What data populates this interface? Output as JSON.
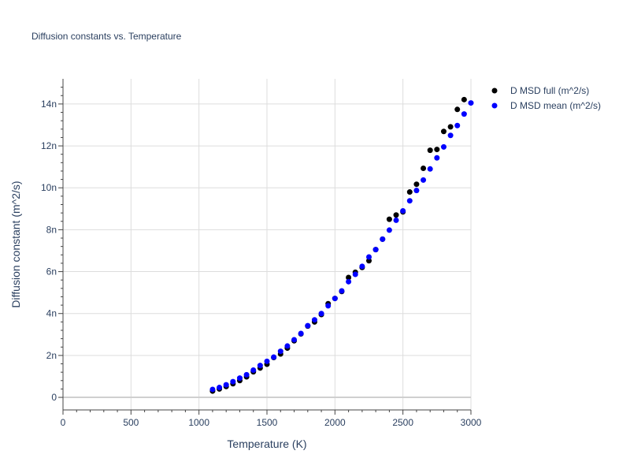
{
  "chart_data": {
    "type": "scatter",
    "title": "Diffusion constants vs. Temperature",
    "xlabel": "Temperature (K)",
    "ylabel": "Diffusion constant (m^2/s)",
    "xlim": [
      0,
      3000
    ],
    "ylim": [
      -0.6,
      15.2
    ],
    "x_ticks": [
      0,
      500,
      1000,
      1500,
      2000,
      2500,
      3000
    ],
    "x_tick_labels": [
      "0",
      "500",
      "1000",
      "1500",
      "2000",
      "2500",
      "3000"
    ],
    "y_ticks": [
      0,
      2,
      4,
      6,
      8,
      10,
      12,
      14
    ],
    "y_tick_labels": [
      "0",
      "2n",
      "4n",
      "6n",
      "8n",
      "10n",
      "12n",
      "14n"
    ],
    "grid": true,
    "legend_position": "top-right",
    "series": [
      {
        "name": "D MSD full (m^2/s)",
        "color": "#000000",
        "x": [
          1100,
          1150,
          1200,
          1250,
          1300,
          1350,
          1400,
          1450,
          1500,
          1550,
          1600,
          1650,
          1700,
          1750,
          1800,
          1850,
          1900,
          1950,
          2000,
          2050,
          2100,
          2150,
          2200,
          2250,
          2300,
          2350,
          2400,
          2450,
          2500,
          2550,
          2600,
          2650,
          2700,
          2750,
          2800,
          2850,
          2900,
          2950
        ],
        "y": [
          0.3,
          0.4,
          0.52,
          0.65,
          0.8,
          0.98,
          1.22,
          1.4,
          1.58,
          1.9,
          2.07,
          2.35,
          2.7,
          3.03,
          3.4,
          3.6,
          3.95,
          4.47,
          4.72,
          5.05,
          5.72,
          5.97,
          6.2,
          6.52,
          7.05,
          7.55,
          8.5,
          8.7,
          8.85,
          9.8,
          10.17,
          10.93,
          11.79,
          11.83,
          12.69,
          12.91,
          13.74,
          14.21
        ]
      },
      {
        "name": "D MSD mean (m^2/s)",
        "color": "#0000ff",
        "x": [
          1100,
          1150,
          1200,
          1250,
          1300,
          1350,
          1400,
          1450,
          1500,
          1550,
          1600,
          1650,
          1700,
          1750,
          1800,
          1850,
          1900,
          1950,
          2000,
          2050,
          2100,
          2150,
          2200,
          2250,
          2300,
          2350,
          2400,
          2450,
          2500,
          2550,
          2600,
          2650,
          2700,
          2750,
          2800,
          2850,
          2900,
          2950,
          3000
        ],
        "y": [
          0.38,
          0.47,
          0.6,
          0.75,
          0.92,
          1.08,
          1.3,
          1.52,
          1.72,
          1.92,
          2.2,
          2.45,
          2.75,
          3.05,
          3.42,
          3.7,
          4.0,
          4.37,
          4.72,
          5.08,
          5.52,
          5.87,
          6.25,
          6.7,
          7.05,
          7.55,
          7.98,
          8.45,
          8.9,
          9.38,
          9.87,
          10.37,
          10.9,
          11.43,
          11.95,
          12.5,
          12.97,
          13.52,
          14.05
        ]
      }
    ]
  }
}
